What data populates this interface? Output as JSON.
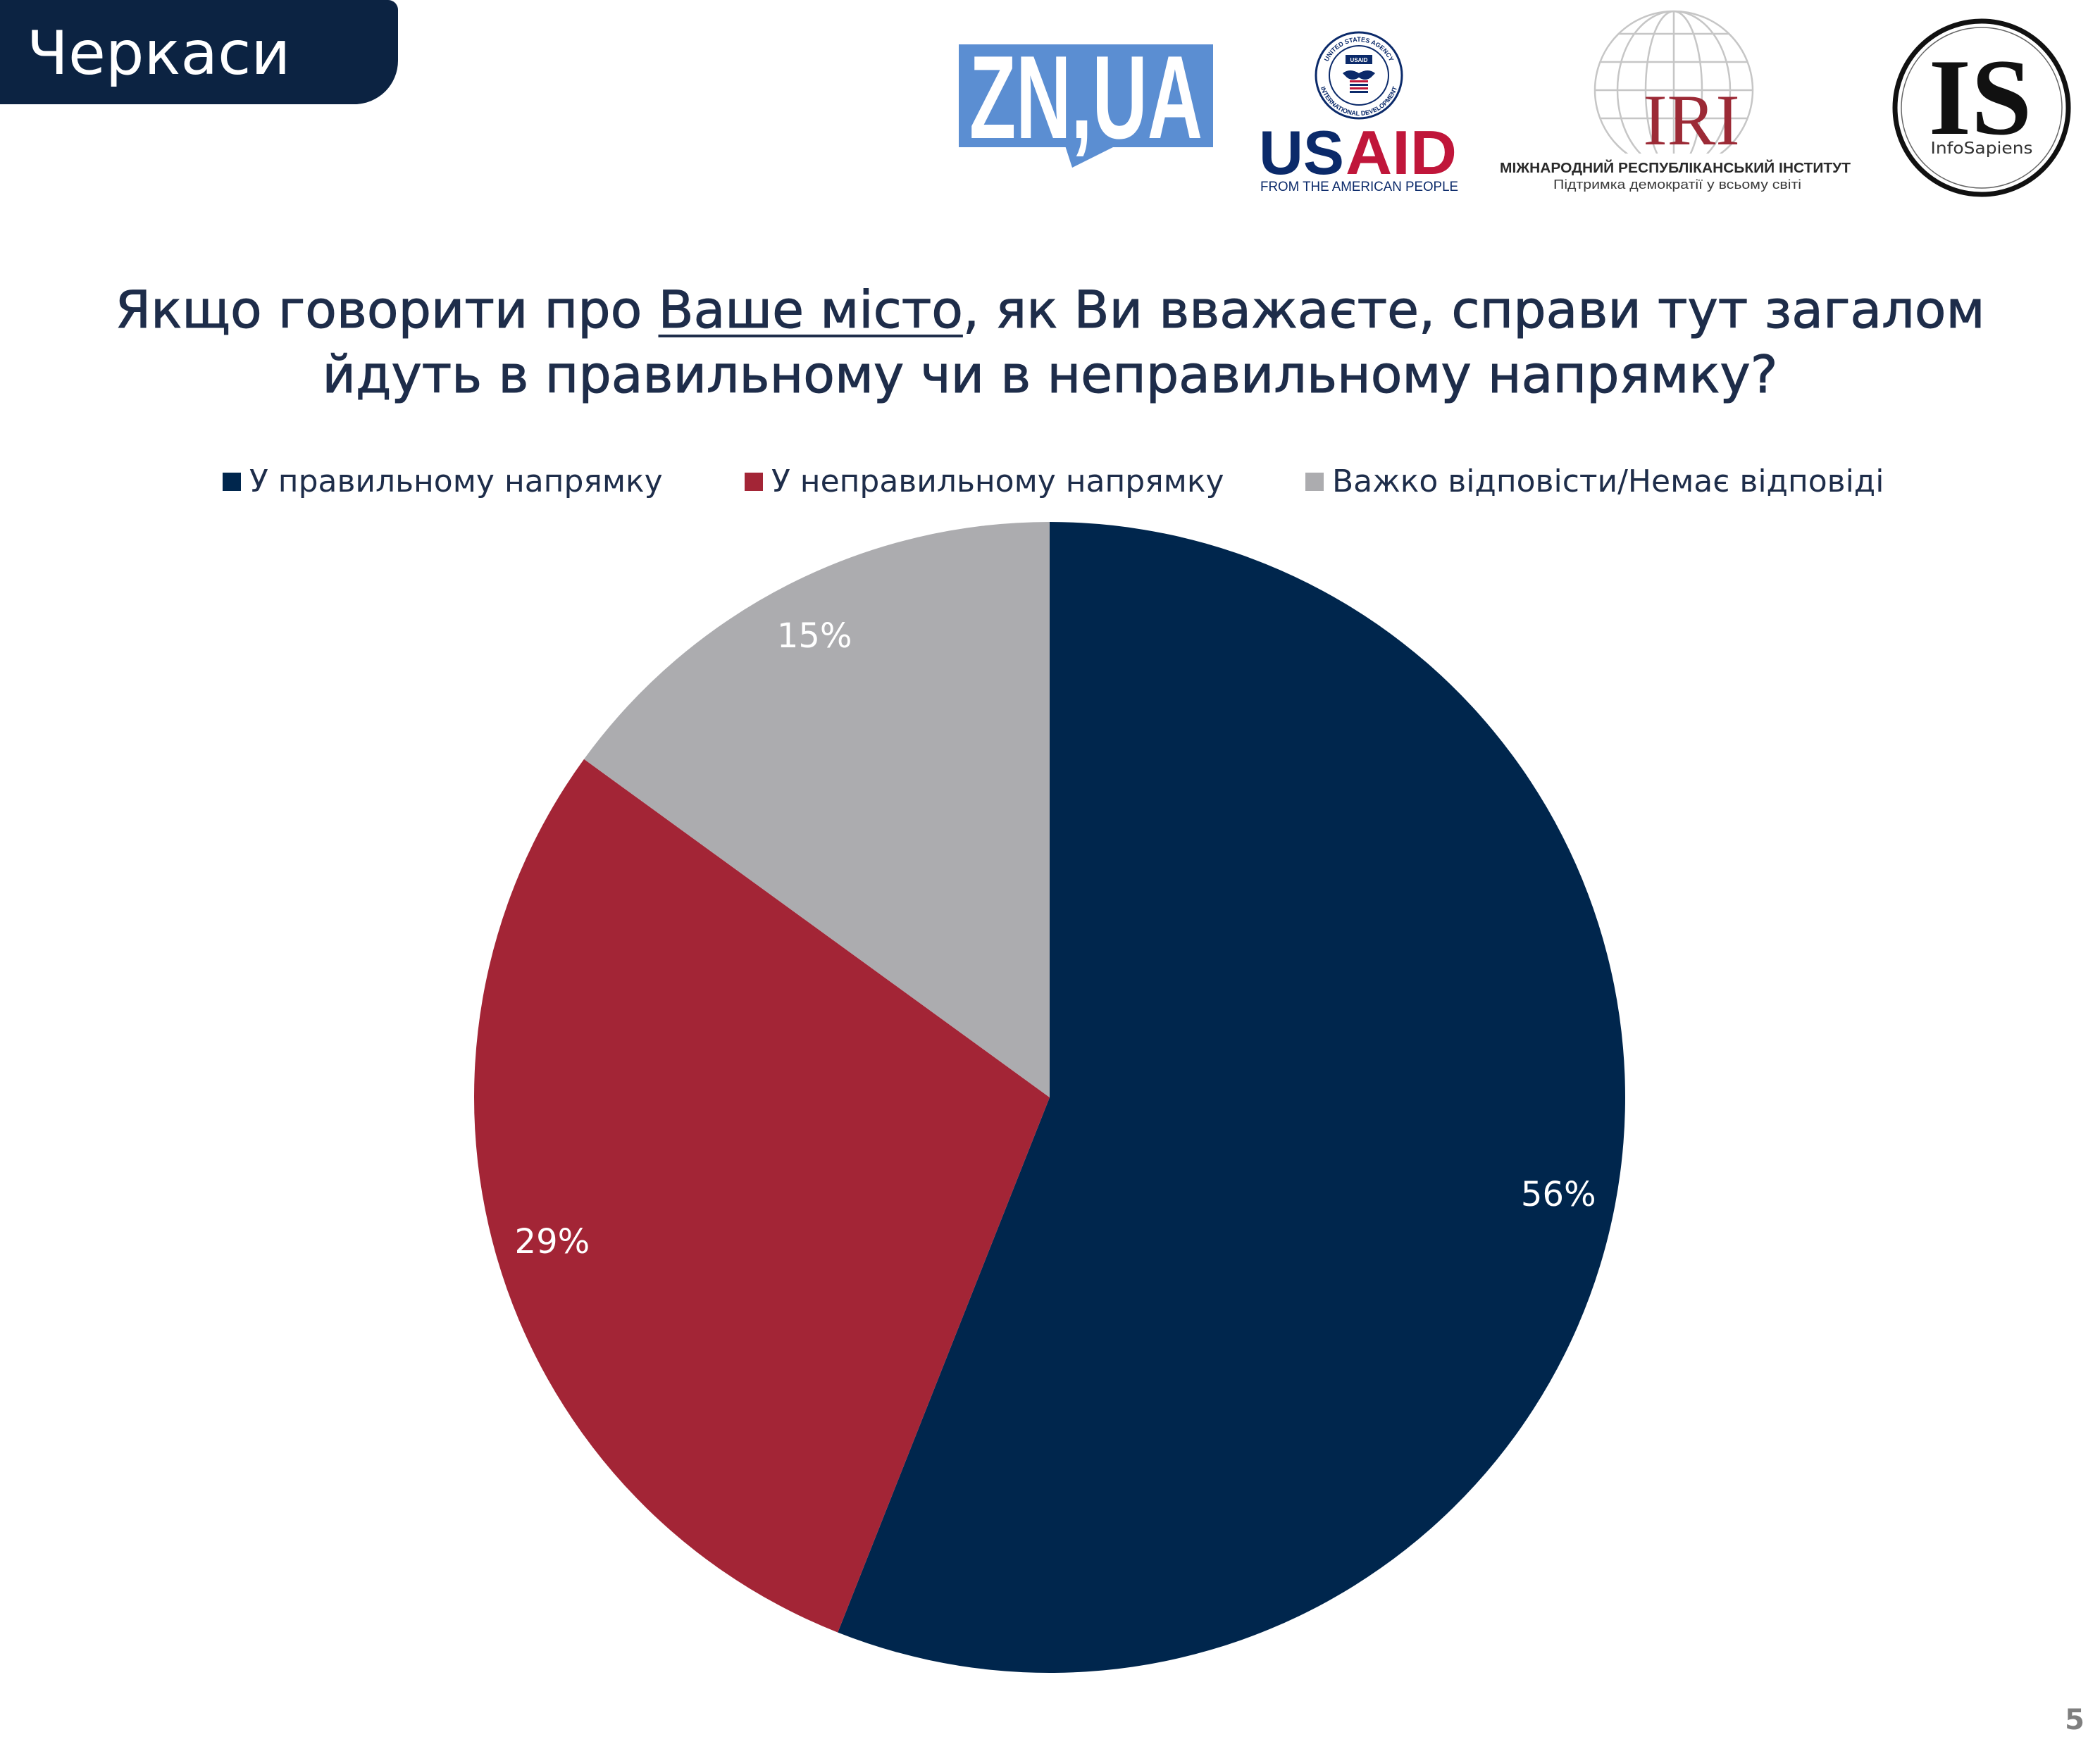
{
  "region_tab": {
    "label": "Черкаси"
  },
  "logos": {
    "znua": {
      "text": "ZN,UA",
      "color": "#5b8ed2"
    },
    "usaid": {
      "seal_top": "UNITED STATES AGENCY",
      "seal_bottom": "INTERNATIONAL DEVELOPMENT",
      "seal_badge": "USAID",
      "wordmark_us": "US",
      "wordmark_aid": "AID",
      "tagline": "FROM THE AMERICAN PEOPLE",
      "navy": "#0b2a6a",
      "red": "#c0163a"
    },
    "iri": {
      "mark": "IRI",
      "name": "МІЖНАРОДНИЙ РЕСПУБЛІКАНСЬКИЙ ІНСТИТУТ",
      "tagline": "Підтримка демократії у всьому світі",
      "red": "#9c2a36"
    },
    "infosapiens": {
      "mark": "IS",
      "name": "InfoSapiens"
    }
  },
  "question": {
    "before": "Якщо говорити про ",
    "emphasis": "Ваше місто",
    "after": ", як Ви вважаєте, справи тут загалом",
    "line2": "йдуть в правильному чи в неправильному напрямку?"
  },
  "chart_data": {
    "type": "pie",
    "categories": [
      "У правильному напрямку",
      "У неправильному напрямку",
      "Важко відповісти/Немає відповіді"
    ],
    "values": [
      56,
      29,
      15
    ],
    "labels": [
      "56%",
      "29%",
      "15%"
    ],
    "colors": [
      "#00264d",
      "#a32536",
      "#acacaf"
    ],
    "legend_position": "top"
  },
  "theme": {
    "text": "#1e2d4a",
    "tab": "#0c2342"
  },
  "page": {
    "number": "5"
  }
}
